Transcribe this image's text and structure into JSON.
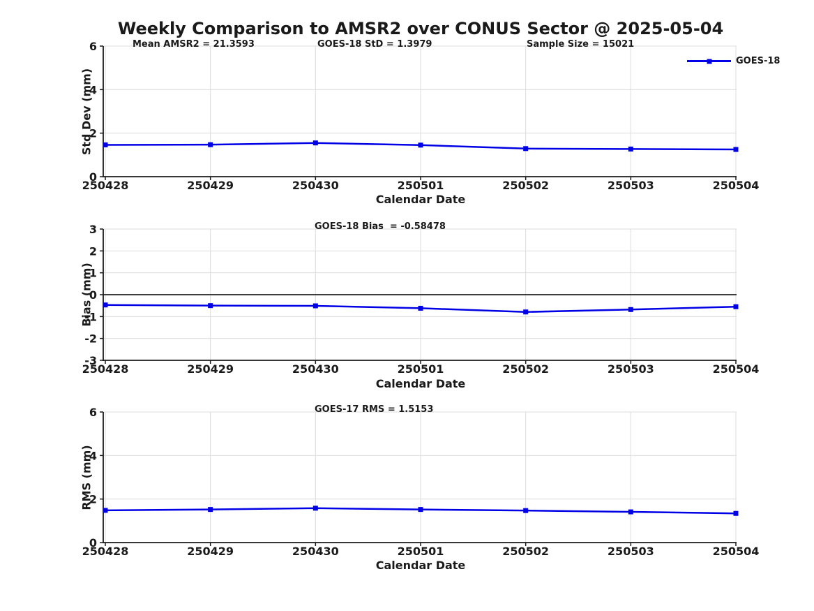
{
  "title": "Weekly Comparison to AMSR2 over CONUS Sector @ 2025-05-04",
  "legend": {
    "label": "GOES-18"
  },
  "x_axis": {
    "label": "Calendar Date",
    "ticks": [
      "250428",
      "250429",
      "250430",
      "250501",
      "250502",
      "250503",
      "250504"
    ]
  },
  "colors": {
    "line": "#0000e6",
    "marker": "#0000e6",
    "grid": "#dcdcdc",
    "axis": "#1a1a1a",
    "zero_line": "#3d3d3d",
    "text": "#1a1a1a",
    "background": "#ffffff"
  },
  "chart_data": [
    {
      "type": "line",
      "ylabel": "Std Dev (mm)",
      "ylim": [
        0,
        6
      ],
      "yticks": [
        0,
        2,
        4,
        6
      ],
      "grid": true,
      "legend_position": "top-right-outside",
      "annotations": [
        {
          "text": "Mean AMSR2 = 21.3593"
        },
        {
          "text": "GOES-18 StD = 1.3979"
        },
        {
          "text": "Sample Size = 15021"
        }
      ],
      "series": [
        {
          "name": "GOES-18",
          "values": [
            1.46,
            1.47,
            1.55,
            1.45,
            1.29,
            1.27,
            1.25
          ]
        }
      ]
    },
    {
      "type": "line",
      "ylabel": "Bias (mm)",
      "ylim": [
        -3,
        3
      ],
      "yticks": [
        -3,
        -2,
        -1,
        0,
        1,
        2,
        3
      ],
      "grid": true,
      "zero_line": true,
      "annotations": [
        {
          "text": "GOES-18 Bias  = -0.58478"
        }
      ],
      "series": [
        {
          "name": "GOES-18",
          "values": [
            -0.47,
            -0.5,
            -0.51,
            -0.62,
            -0.79,
            -0.68,
            -0.55
          ]
        }
      ]
    },
    {
      "type": "line",
      "ylabel": "RMS (mm)",
      "ylim": [
        0,
        6
      ],
      "yticks": [
        0,
        2,
        4,
        6
      ],
      "grid": true,
      "annotations": [
        {
          "text": "GOES-17 RMS = 1.5153"
        }
      ],
      "series": [
        {
          "name": "GOES-18",
          "values": [
            1.48,
            1.52,
            1.58,
            1.52,
            1.47,
            1.41,
            1.34
          ]
        }
      ]
    }
  ]
}
